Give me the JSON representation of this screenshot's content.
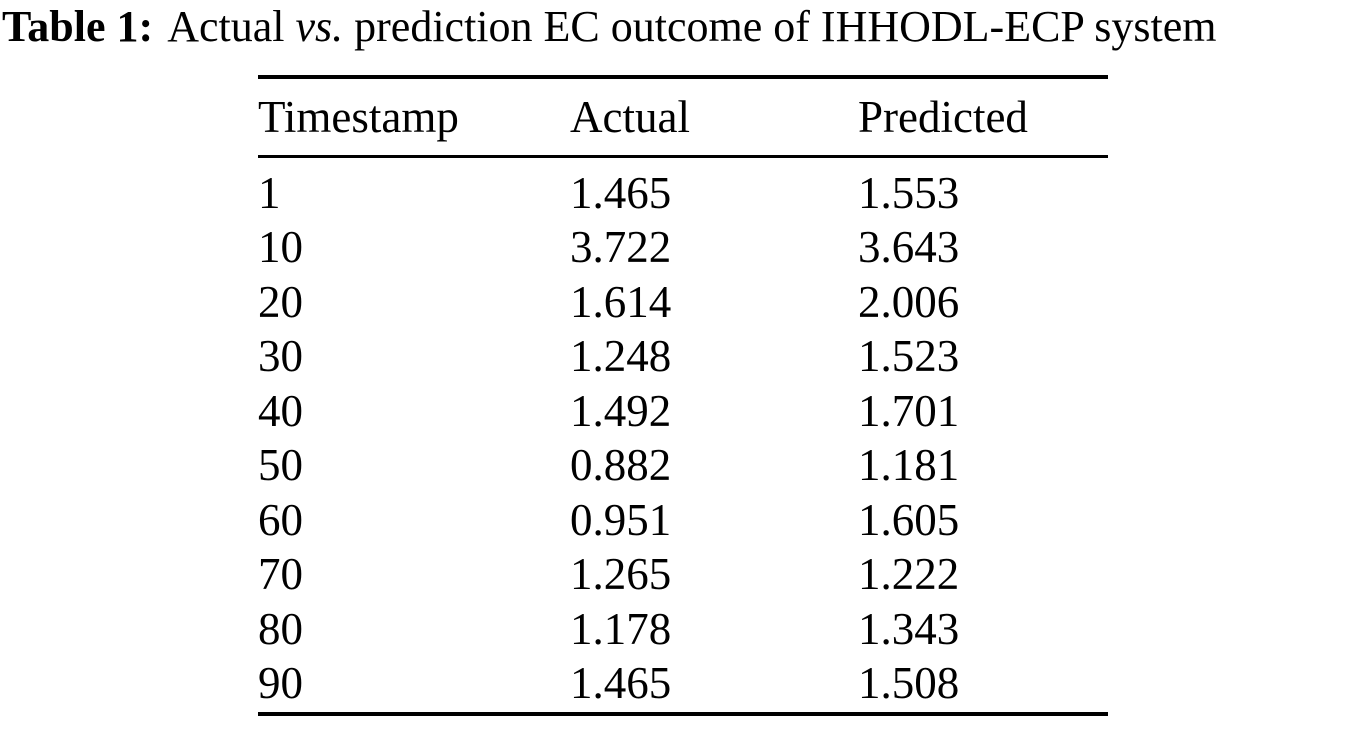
{
  "caption": {
    "label": "Table 1:",
    "pre_vs": "Actual ",
    "vs": "vs.",
    "post_vs": " prediction EC outcome of IHHODL-ECP system"
  },
  "table": {
    "columns": [
      "Timestamp",
      "Actual",
      "Predicted"
    ],
    "rows": [
      {
        "timestamp": "1",
        "actual": "1.465",
        "predicted": "1.553"
      },
      {
        "timestamp": "10",
        "actual": "3.722",
        "predicted": "3.643"
      },
      {
        "timestamp": "20",
        "actual": "1.614",
        "predicted": "2.006"
      },
      {
        "timestamp": "30",
        "actual": "1.248",
        "predicted": "1.523"
      },
      {
        "timestamp": "40",
        "actual": "1.492",
        "predicted": "1.701"
      },
      {
        "timestamp": "50",
        "actual": "0.882",
        "predicted": "1.181"
      },
      {
        "timestamp": "60",
        "actual": "0.951",
        "predicted": "1.605"
      },
      {
        "timestamp": "70",
        "actual": "1.265",
        "predicted": "1.222"
      },
      {
        "timestamp": "80",
        "actual": "1.178",
        "predicted": "1.343"
      },
      {
        "timestamp": "90",
        "actual": "1.465",
        "predicted": "1.508"
      }
    ]
  },
  "colors": {
    "text": "#000000",
    "background": "#ffffff",
    "rule": "#000000"
  }
}
